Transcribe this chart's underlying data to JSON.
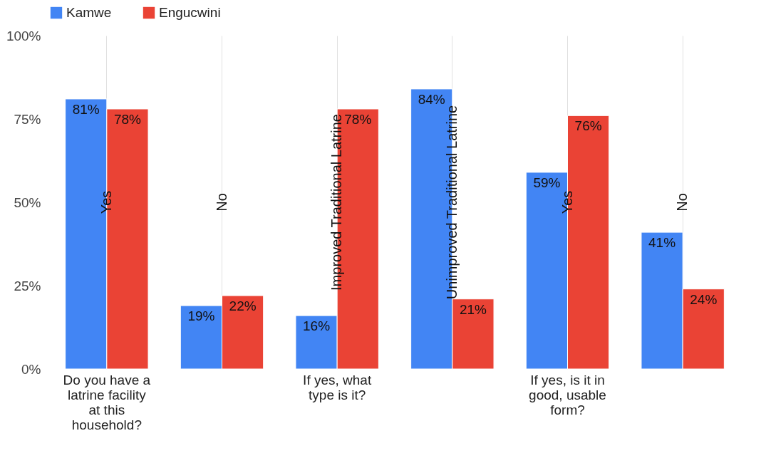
{
  "chart_data": {
    "type": "bar",
    "categories": [
      "Do you have a latrine facility at this household?",
      null,
      "If yes, what type is it?",
      null,
      "If yes, is it in good, usable form?",
      null
    ],
    "series": [
      {
        "name": "Kamwe",
        "color": "#4285f4",
        "values": [
          81,
          19,
          16,
          84,
          59,
          41
        ],
        "value_labels": [
          "81%",
          "19%",
          "16%",
          "84%",
          "59%",
          "41%"
        ]
      },
      {
        "name": "Engucwini",
        "color": "#ea4335",
        "values": [
          78,
          22,
          78,
          21,
          76,
          24
        ],
        "value_labels": [
          "78%",
          "22%",
          "78%",
          "21%",
          "76%",
          "24%"
        ]
      }
    ],
    "annotations": [
      "Yes",
      "No",
      "Improved Traditional Latrine",
      "Unimproved Traditional Latrine",
      "Yes",
      "No"
    ],
    "ylim": [
      0,
      100
    ],
    "yticks": [
      {
        "value": 0,
        "label": "0%"
      },
      {
        "value": 25,
        "label": "25%"
      },
      {
        "value": 50,
        "label": "50%"
      },
      {
        "value": 75,
        "label": "75%"
      },
      {
        "value": 100,
        "label": "100%"
      }
    ],
    "grid": "x",
    "legend": "top"
  }
}
